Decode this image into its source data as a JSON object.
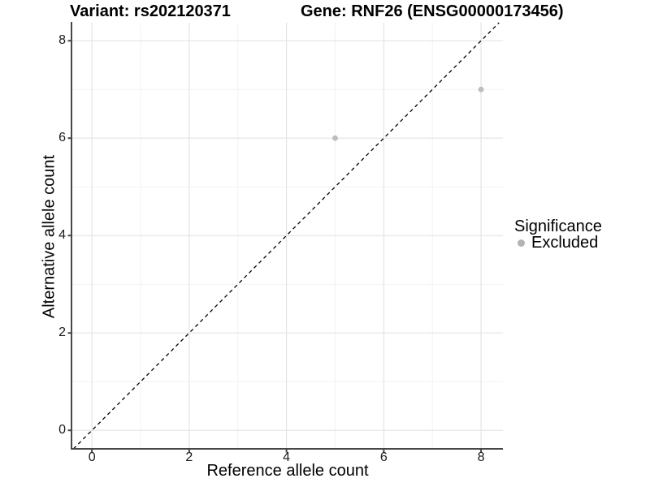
{
  "chart_data": {
    "type": "scatter",
    "title_left": "Variant: rs202120371",
    "title_right": "Gene: RNF26 (ENSG00000173456)",
    "xlabel": "Reference allele count",
    "ylabel": "Alternative allele count",
    "xlim": [
      -0.42,
      8.45
    ],
    "ylim": [
      -0.38,
      8.37
    ],
    "x_ticks": [
      0,
      2,
      4,
      6,
      8
    ],
    "y_ticks": [
      0,
      2,
      4,
      6,
      8
    ],
    "x_minor": [
      1,
      3,
      5,
      7
    ],
    "y_minor": [
      1,
      3,
      5,
      7
    ],
    "grid": "major+minor",
    "abline": {
      "type": "identity",
      "slope": 1,
      "intercept": 0,
      "style": "dashed",
      "color": "#000000"
    },
    "series": [
      {
        "name": "Excluded",
        "color": "#bdbdbd",
        "points": [
          {
            "x": 5,
            "y": 6
          },
          {
            "x": 8,
            "y": 7
          }
        ]
      }
    ],
    "legend": {
      "title": "Significance",
      "position": "right",
      "items": [
        {
          "label": "Excluded",
          "color": "#b3b3b3",
          "marker": "circle"
        }
      ]
    }
  },
  "colors": {
    "axis": "#474747",
    "grid_major": "#e4e4e4",
    "grid_minor": "#f2f2f2",
    "tick_text": "#1a1a1a",
    "point": "#bdbdbd"
  }
}
